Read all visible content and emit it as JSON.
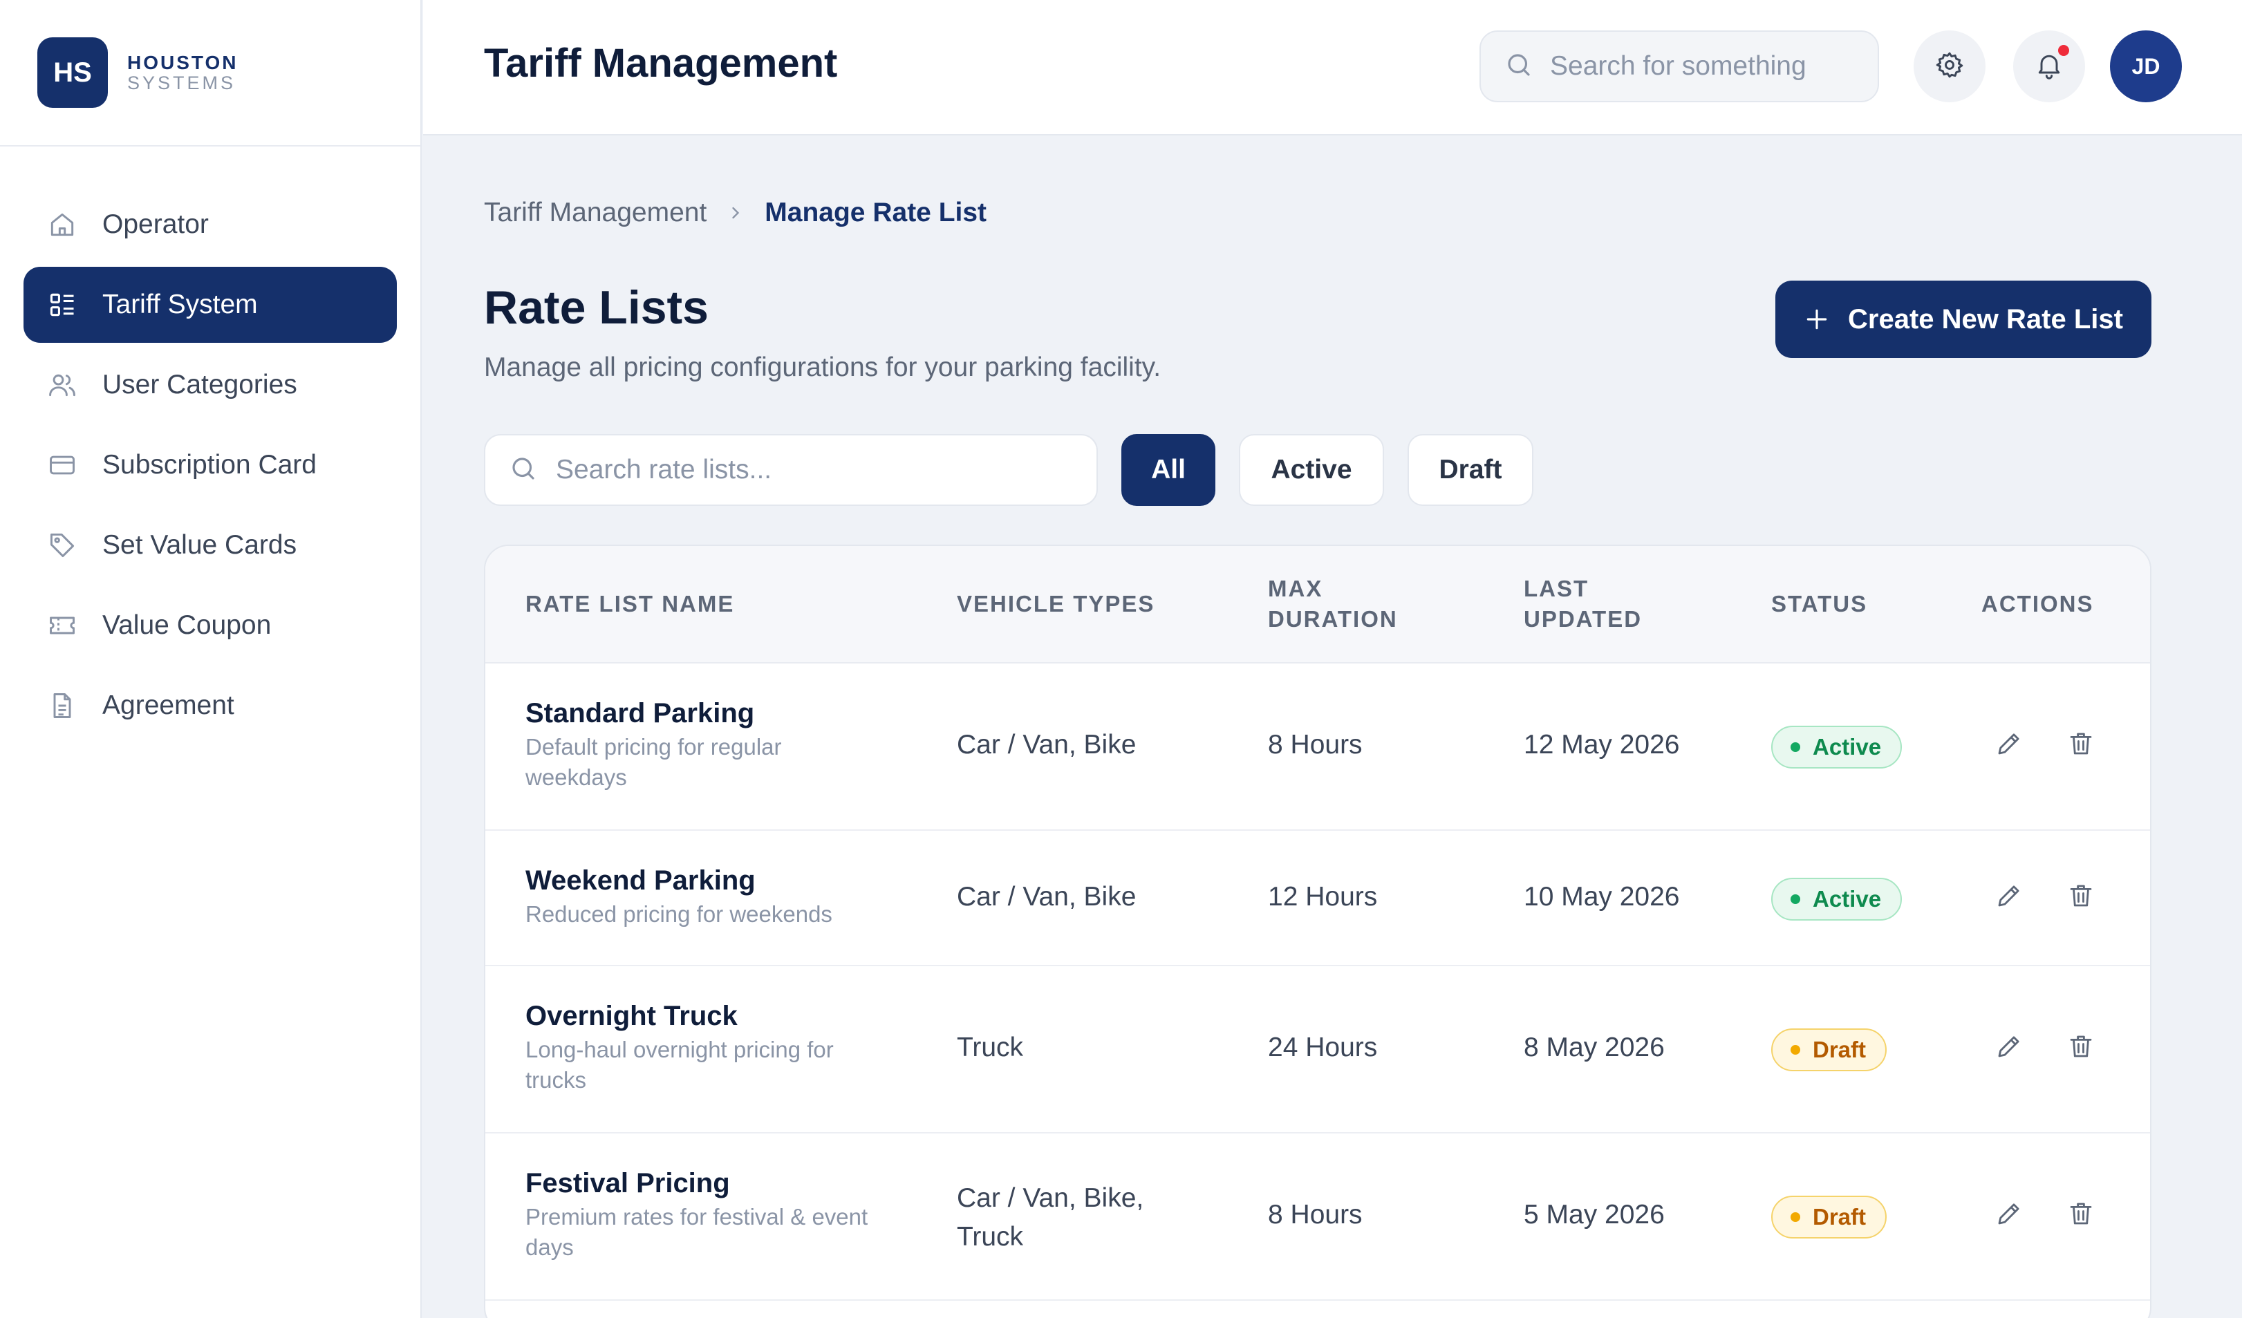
{
  "brand": {
    "mark": "HS",
    "name": "HOUSTON",
    "sub": "SYSTEMS"
  },
  "sidebar": {
    "items": [
      {
        "label": "Operator",
        "icon": "home-icon"
      },
      {
        "label": "Tariff System",
        "icon": "list-icon",
        "active": true
      },
      {
        "label": "User Categories",
        "icon": "users-icon"
      },
      {
        "label": "Subscription Card",
        "icon": "card-icon"
      },
      {
        "label": "Set Value Cards",
        "icon": "tag-icon"
      },
      {
        "label": "Value Coupon",
        "icon": "ticket-icon"
      },
      {
        "label": "Agreement",
        "icon": "document-icon"
      }
    ]
  },
  "header": {
    "title": "Tariff Management",
    "search_placeholder": "Search for something",
    "avatar": "JD"
  },
  "breadcrumb": {
    "parent": "Tariff Management",
    "current": "Manage Rate List"
  },
  "main": {
    "title": "Rate Lists",
    "subtitle": "Manage all pricing configurations for your parking facility.",
    "create_label": "Create New Rate List",
    "search_placeholder": "Search rate lists...",
    "filters": [
      "All",
      "Active",
      "Draft"
    ],
    "active_filter": "All"
  },
  "table": {
    "columns": [
      "RATE LIST NAME",
      "VEHICLE TYPES",
      "MAX\nDURATION",
      "LAST\nUPDATED",
      "STATUS",
      "ACTIONS"
    ],
    "rows": [
      {
        "name": "Standard Parking",
        "desc": "Default pricing for regular weekdays",
        "vehicles": "Car / Van, Bike",
        "duration": "8 Hours",
        "updated": "12 May 2026",
        "status": "Active"
      },
      {
        "name": "Weekend Parking",
        "desc": "Reduced pricing for weekends",
        "vehicles": "Car / Van, Bike",
        "duration": "12 Hours",
        "updated": "10 May 2026",
        "status": "Active"
      },
      {
        "name": "Overnight Truck",
        "desc": "Long-haul overnight pricing for trucks",
        "vehicles": "Truck",
        "duration": "24 Hours",
        "updated": "8 May 2026",
        "status": "Draft"
      },
      {
        "name": "Festival Pricing",
        "desc": "Premium rates for festival & event days",
        "vehicles": "Car / Van, Bike, Truck",
        "duration": "8 Hours",
        "updated": "5 May 2026",
        "status": "Draft"
      }
    ]
  },
  "colors": {
    "primary": "#15306b",
    "active_badge": "#13a861",
    "draft_badge": "#f2a900",
    "notification": "#ef2b3a",
    "background": "#eff2f7"
  }
}
